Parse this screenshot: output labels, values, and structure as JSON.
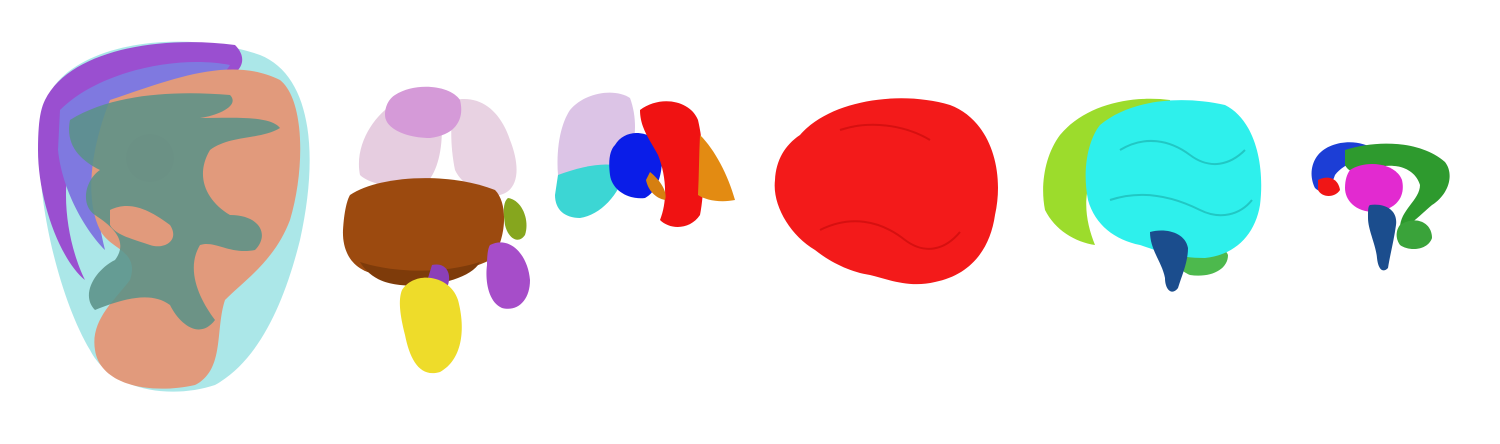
{
  "scene": {
    "models": [
      {
        "id": "fetus-uterus",
        "colors": {
          "membrane": "#8fdfe0",
          "body": "#e19a7c",
          "overlay": "#5b9287",
          "top": "#9a4fd0",
          "inner": "#7f79e0"
        }
      },
      {
        "id": "abdominal-organs",
        "colors": {
          "lung": "#e6cde0",
          "heart": "#d59ad8",
          "liver": "#9c4a0f",
          "kidney": "#a64dc9",
          "bladder": "#eedc2a",
          "gland": "#86a61e"
        }
      },
      {
        "id": "thoracic-organs",
        "colors": {
          "lung": "#dcc4e6",
          "heart": "#0a1de8",
          "aorta": "#f01212",
          "base": "#3cd6d4",
          "side": "#e38b12"
        }
      },
      {
        "id": "whole-brain",
        "colors": {
          "brain": "#f31a1a"
        }
      },
      {
        "id": "brain-hemispheres",
        "colors": {
          "left": "#9cdc2c",
          "right": "#2ef0ec",
          "stem": "#1b4d8d",
          "cerebellum": "#4db94d"
        }
      },
      {
        "id": "deep-structures",
        "colors": {
          "blue": "#1c3ed6",
          "green": "#2e9a2e",
          "pink": "#e22ad0",
          "red": "#f01616",
          "stem": "#1b4d8d"
        }
      }
    ]
  }
}
